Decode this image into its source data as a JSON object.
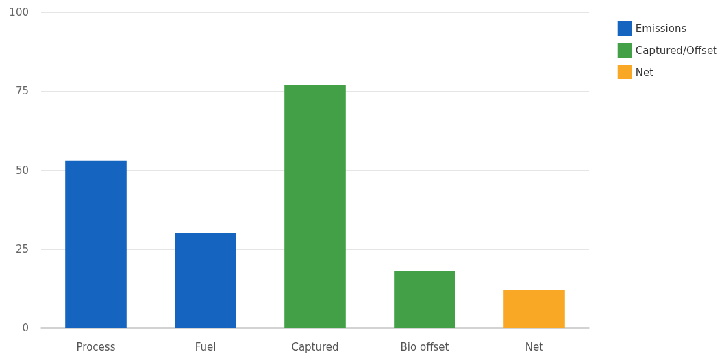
{
  "chart_data": {
    "type": "bar",
    "categories": [
      "Process",
      "Fuel",
      "Captured",
      "Bio offset",
      "Net"
    ],
    "series": [
      {
        "name": "Emissions",
        "color": "#1565c0",
        "values": [
          53,
          30,
          null,
          null,
          null
        ]
      },
      {
        "name": "Captured/Offset",
        "color": "#43a047",
        "values": [
          null,
          null,
          77,
          18,
          null
        ]
      },
      {
        "name": "Net",
        "color": "#f9a825",
        "values": [
          null,
          null,
          null,
          null,
          12
        ]
      }
    ],
    "ylim": [
      0,
      100
    ],
    "yticks": [
      0,
      25,
      50,
      75,
      100
    ],
    "grid": "y",
    "legend": "top right"
  }
}
